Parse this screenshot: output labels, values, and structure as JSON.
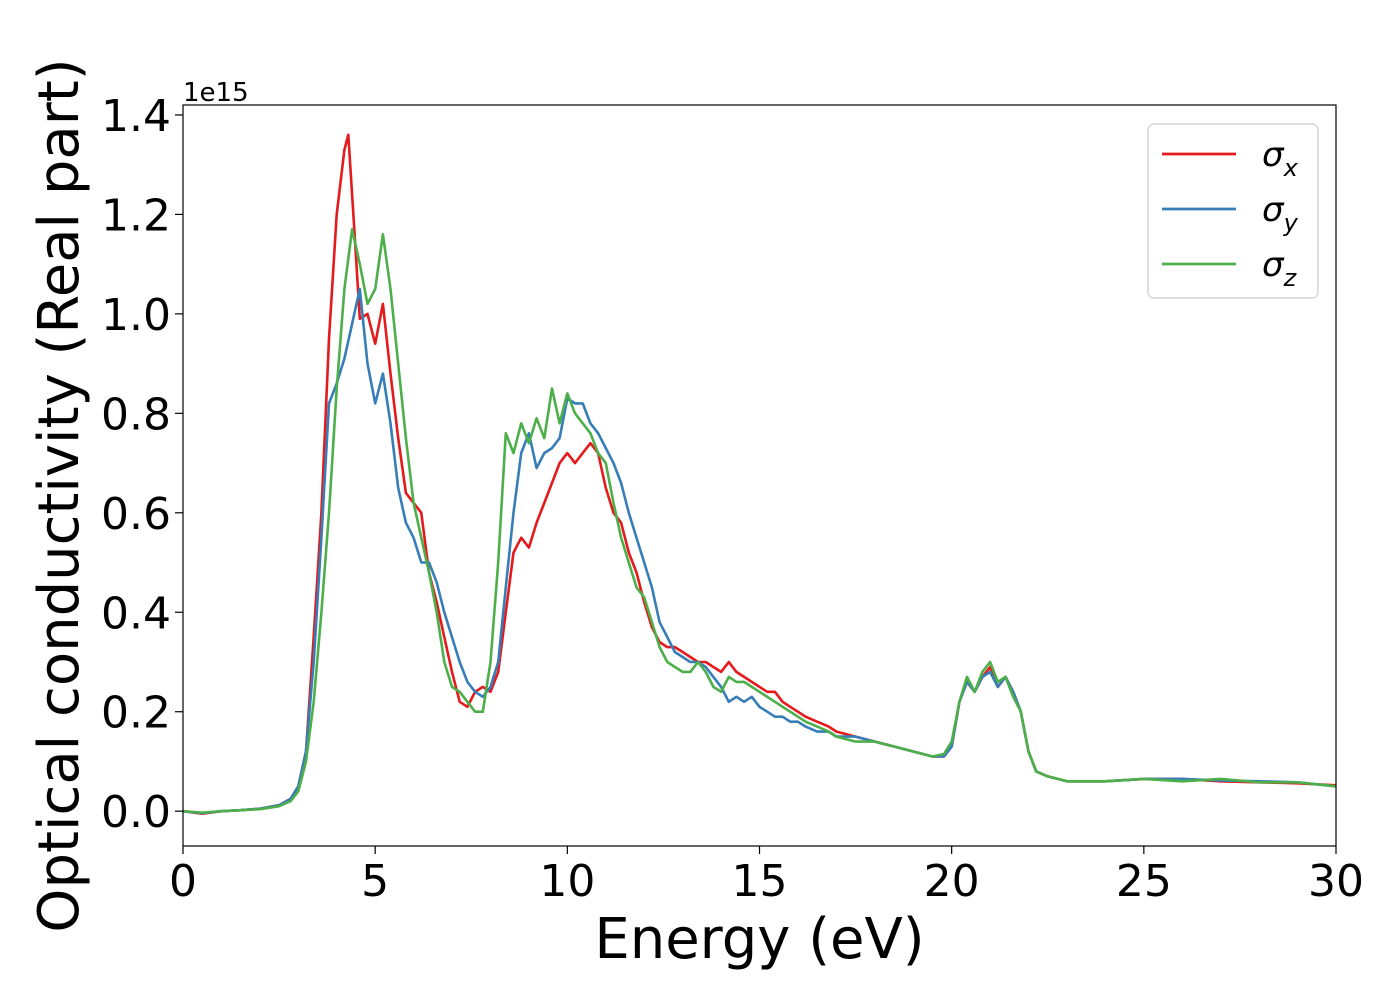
{
  "chart_data": {
    "type": "line",
    "xlabel": "Energy (eV)",
    "ylabel": "Optical conductivity (Real part)",
    "y_offset_label": "1e15",
    "xlim": [
      0,
      30
    ],
    "ylim": [
      -0.07,
      1.42
    ],
    "x_ticks": [
      0,
      5,
      10,
      15,
      20,
      25,
      30
    ],
    "x_tick_labels": [
      "0",
      "5",
      "10",
      "15",
      "20",
      "25",
      "30"
    ],
    "y_ticks": [
      0.0,
      0.2,
      0.4,
      0.6,
      0.8,
      1.0,
      1.2,
      1.4
    ],
    "y_tick_labels": [
      "0.0",
      "0.2",
      "0.4",
      "0.6",
      "0.8",
      "1.0",
      "1.2",
      "1.4"
    ],
    "grid": false,
    "legend_position": "top-right",
    "series": [
      {
        "name": "σx",
        "name_base": "σ",
        "name_sub": "x",
        "color": "#e41a1c",
        "x": [
          0,
          0.5,
          1,
          1.5,
          2,
          2.5,
          2.8,
          3.0,
          3.2,
          3.4,
          3.6,
          3.8,
          4.0,
          4.2,
          4.3,
          4.45,
          4.6,
          4.8,
          5.0,
          5.2,
          5.4,
          5.6,
          5.8,
          6.0,
          6.2,
          6.4,
          6.6,
          6.8,
          7.0,
          7.2,
          7.4,
          7.6,
          7.8,
          8.0,
          8.2,
          8.4,
          8.6,
          8.8,
          9.0,
          9.2,
          9.4,
          9.6,
          9.8,
          10.0,
          10.2,
          10.4,
          10.6,
          10.8,
          11.0,
          11.2,
          11.4,
          11.6,
          11.8,
          12.0,
          12.2,
          12.4,
          12.6,
          12.8,
          13.0,
          13.2,
          13.4,
          13.6,
          13.8,
          14.0,
          14.2,
          14.4,
          14.6,
          14.8,
          15.0,
          15.2,
          15.4,
          15.6,
          15.8,
          16.0,
          16.2,
          16.5,
          16.8,
          17.0,
          17.5,
          18.0,
          18.5,
          19.0,
          19.5,
          19.8,
          20.0,
          20.2,
          20.4,
          20.6,
          20.8,
          21.0,
          21.2,
          21.4,
          21.6,
          21.8,
          22.0,
          22.2,
          22.5,
          23,
          24,
          25,
          26,
          27,
          28,
          29,
          30
        ],
        "y": [
          0,
          -0.005,
          0,
          0.002,
          0.005,
          0.012,
          0.025,
          0.05,
          0.12,
          0.35,
          0.6,
          0.95,
          1.2,
          1.33,
          1.36,
          1.18,
          0.99,
          1.0,
          0.94,
          1.02,
          0.88,
          0.75,
          0.64,
          0.62,
          0.6,
          0.48,
          0.42,
          0.35,
          0.28,
          0.22,
          0.21,
          0.24,
          0.25,
          0.24,
          0.28,
          0.4,
          0.52,
          0.55,
          0.53,
          0.58,
          0.62,
          0.66,
          0.7,
          0.72,
          0.7,
          0.72,
          0.74,
          0.72,
          0.65,
          0.6,
          0.58,
          0.52,
          0.48,
          0.42,
          0.37,
          0.34,
          0.33,
          0.33,
          0.32,
          0.31,
          0.3,
          0.3,
          0.29,
          0.28,
          0.3,
          0.28,
          0.27,
          0.26,
          0.25,
          0.24,
          0.24,
          0.22,
          0.21,
          0.2,
          0.19,
          0.18,
          0.17,
          0.16,
          0.15,
          0.14,
          0.13,
          0.12,
          0.11,
          0.11,
          0.13,
          0.22,
          0.26,
          0.24,
          0.27,
          0.29,
          0.25,
          0.27,
          0.24,
          0.2,
          0.12,
          0.08,
          0.07,
          0.06,
          0.06,
          0.065,
          0.065,
          0.06,
          0.058,
          0.056,
          0.052
        ]
      },
      {
        "name": "σy",
        "name_base": "σ",
        "name_sub": "y",
        "color": "#377eb8",
        "x": [
          0,
          0.5,
          1,
          1.5,
          2,
          2.5,
          2.8,
          3.0,
          3.2,
          3.4,
          3.6,
          3.8,
          4.0,
          4.2,
          4.4,
          4.6,
          4.8,
          5.0,
          5.2,
          5.4,
          5.6,
          5.8,
          6.0,
          6.2,
          6.4,
          6.6,
          6.8,
          7.0,
          7.2,
          7.4,
          7.6,
          7.8,
          8.0,
          8.2,
          8.4,
          8.6,
          8.8,
          9.0,
          9.2,
          9.4,
          9.6,
          9.8,
          10.0,
          10.2,
          10.4,
          10.6,
          10.8,
          11.0,
          11.2,
          11.4,
          11.6,
          11.8,
          12.0,
          12.2,
          12.4,
          12.6,
          12.8,
          13.0,
          13.2,
          13.4,
          13.6,
          13.8,
          14.0,
          14.2,
          14.4,
          14.6,
          14.8,
          15.0,
          15.2,
          15.4,
          15.6,
          15.8,
          16.0,
          16.2,
          16.5,
          16.8,
          17.0,
          17.5,
          18.0,
          18.5,
          19.0,
          19.5,
          19.8,
          20.0,
          20.2,
          20.4,
          20.6,
          20.8,
          21.0,
          21.2,
          21.4,
          21.6,
          21.8,
          22.0,
          22.2,
          22.5,
          23,
          24,
          25,
          26,
          27,
          28,
          29,
          30
        ],
        "y": [
          0,
          -0.004,
          0,
          0.002,
          0.005,
          0.012,
          0.025,
          0.05,
          0.12,
          0.3,
          0.55,
          0.82,
          0.86,
          0.91,
          0.98,
          1.05,
          0.9,
          0.82,
          0.88,
          0.78,
          0.65,
          0.58,
          0.55,
          0.5,
          0.5,
          0.46,
          0.4,
          0.35,
          0.3,
          0.26,
          0.24,
          0.23,
          0.25,
          0.3,
          0.45,
          0.6,
          0.72,
          0.76,
          0.69,
          0.72,
          0.73,
          0.75,
          0.83,
          0.82,
          0.82,
          0.78,
          0.76,
          0.73,
          0.7,
          0.66,
          0.6,
          0.55,
          0.5,
          0.45,
          0.38,
          0.35,
          0.32,
          0.31,
          0.3,
          0.3,
          0.29,
          0.27,
          0.25,
          0.22,
          0.23,
          0.22,
          0.23,
          0.21,
          0.2,
          0.19,
          0.19,
          0.18,
          0.18,
          0.17,
          0.16,
          0.16,
          0.15,
          0.15,
          0.14,
          0.13,
          0.12,
          0.11,
          0.11,
          0.13,
          0.22,
          0.26,
          0.24,
          0.27,
          0.28,
          0.25,
          0.27,
          0.24,
          0.2,
          0.12,
          0.08,
          0.07,
          0.06,
          0.06,
          0.065,
          0.065,
          0.062,
          0.06,
          0.058,
          0.05
        ]
      },
      {
        "name": "σz",
        "name_base": "σ",
        "name_sub": "z",
        "color": "#4daf4a",
        "x": [
          0,
          0.5,
          1,
          1.5,
          2,
          2.5,
          2.8,
          3.0,
          3.2,
          3.4,
          3.6,
          3.8,
          4.0,
          4.2,
          4.4,
          4.6,
          4.8,
          5.0,
          5.2,
          5.4,
          5.6,
          5.8,
          6.0,
          6.2,
          6.4,
          6.6,
          6.8,
          7.0,
          7.2,
          7.4,
          7.6,
          7.8,
          8.0,
          8.2,
          8.4,
          8.6,
          8.8,
          9.0,
          9.2,
          9.4,
          9.6,
          9.8,
          10.0,
          10.2,
          10.4,
          10.6,
          10.8,
          11.0,
          11.2,
          11.4,
          11.6,
          11.8,
          12.0,
          12.2,
          12.4,
          12.6,
          12.8,
          13.0,
          13.2,
          13.4,
          13.6,
          13.8,
          14.0,
          14.2,
          14.4,
          14.6,
          14.8,
          15.0,
          15.2,
          15.4,
          15.6,
          15.8,
          16.0,
          16.2,
          16.5,
          16.8,
          17.0,
          17.5,
          18.0,
          18.5,
          19.0,
          19.5,
          19.8,
          20.0,
          20.2,
          20.4,
          20.6,
          20.8,
          21.0,
          21.2,
          21.4,
          21.6,
          21.8,
          22.0,
          22.2,
          22.5,
          23,
          24,
          25,
          26,
          27,
          28,
          29,
          30
        ],
        "y": [
          0,
          -0.003,
          0,
          0.002,
          0.004,
          0.01,
          0.02,
          0.04,
          0.1,
          0.22,
          0.4,
          0.6,
          0.85,
          1.05,
          1.17,
          1.1,
          1.02,
          1.05,
          1.16,
          1.05,
          0.9,
          0.75,
          0.62,
          0.55,
          0.48,
          0.4,
          0.3,
          0.25,
          0.24,
          0.22,
          0.2,
          0.2,
          0.3,
          0.5,
          0.76,
          0.72,
          0.78,
          0.74,
          0.79,
          0.75,
          0.85,
          0.78,
          0.84,
          0.8,
          0.78,
          0.76,
          0.72,
          0.7,
          0.62,
          0.55,
          0.5,
          0.45,
          0.43,
          0.38,
          0.33,
          0.3,
          0.29,
          0.28,
          0.28,
          0.3,
          0.28,
          0.25,
          0.24,
          0.27,
          0.26,
          0.26,
          0.25,
          0.24,
          0.23,
          0.22,
          0.21,
          0.2,
          0.19,
          0.18,
          0.17,
          0.16,
          0.15,
          0.14,
          0.14,
          0.13,
          0.12,
          0.11,
          0.115,
          0.14,
          0.22,
          0.27,
          0.24,
          0.28,
          0.3,
          0.26,
          0.27,
          0.23,
          0.2,
          0.12,
          0.08,
          0.07,
          0.06,
          0.06,
          0.065,
          0.06,
          0.065,
          0.058,
          0.058,
          0.05
        ]
      }
    ]
  }
}
